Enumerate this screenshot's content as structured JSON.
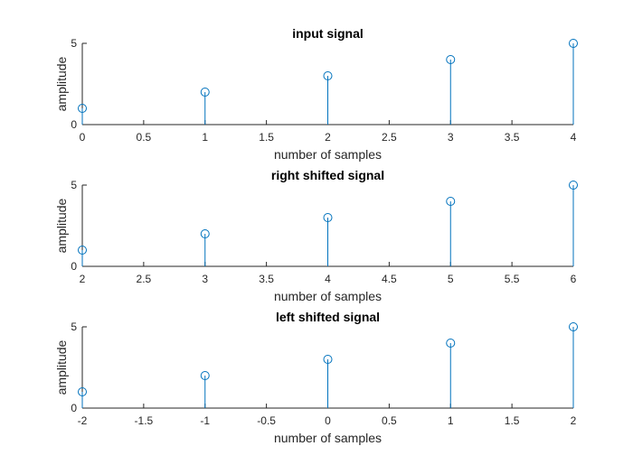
{
  "chart_data": [
    {
      "type": "stem",
      "title": "input signal",
      "xlabel": "number of samples",
      "ylabel": "amplitude",
      "xlim": [
        0,
        4
      ],
      "ylim": [
        0,
        5
      ],
      "x": [
        0,
        1,
        2,
        3,
        4
      ],
      "y": [
        1,
        2,
        3,
        4,
        5
      ],
      "xticks": [
        0,
        0.5,
        1,
        1.5,
        2,
        2.5,
        3,
        3.5,
        4
      ],
      "xtick_labels": [
        "0",
        "0.5",
        "1",
        "1.5",
        "2",
        "2.5",
        "3",
        "3.5",
        "4"
      ],
      "yticks": [
        0,
        5
      ],
      "ytick_labels": [
        "0",
        "5"
      ],
      "color": "#0072BD",
      "grid": false
    },
    {
      "type": "stem",
      "title": "right shifted signal",
      "xlabel": "number of samples",
      "ylabel": "amplitude",
      "xlim": [
        2,
        6
      ],
      "ylim": [
        0,
        5
      ],
      "x": [
        2,
        3,
        4,
        5,
        6
      ],
      "y": [
        1,
        2,
        3,
        4,
        5
      ],
      "xticks": [
        2,
        2.5,
        3,
        3.5,
        4,
        4.5,
        5,
        5.5,
        6
      ],
      "xtick_labels": [
        "2",
        "2.5",
        "3",
        "3.5",
        "4",
        "4.5",
        "5",
        "5.5",
        "6"
      ],
      "yticks": [
        0,
        5
      ],
      "ytick_labels": [
        "0",
        "5"
      ],
      "color": "#0072BD",
      "grid": false
    },
    {
      "type": "stem",
      "title": "left shifted signal",
      "xlabel": "number of samples",
      "ylabel": "amplitude",
      "xlim": [
        -2,
        2
      ],
      "ylim": [
        0,
        5
      ],
      "x": [
        -2,
        -1,
        0,
        1,
        2
      ],
      "y": [
        1,
        2,
        3,
        4,
        5
      ],
      "xticks": [
        -2,
        -1.5,
        -1,
        -0.5,
        0,
        0.5,
        1,
        1.5,
        2
      ],
      "xtick_labels": [
        "-2",
        "-1.5",
        "-1",
        "-0.5",
        "0",
        "0.5",
        "1",
        "1.5",
        "2"
      ],
      "yticks": [
        0,
        5
      ],
      "ytick_labels": [
        "0",
        "5"
      ],
      "color": "#0072BD",
      "grid": false
    }
  ]
}
